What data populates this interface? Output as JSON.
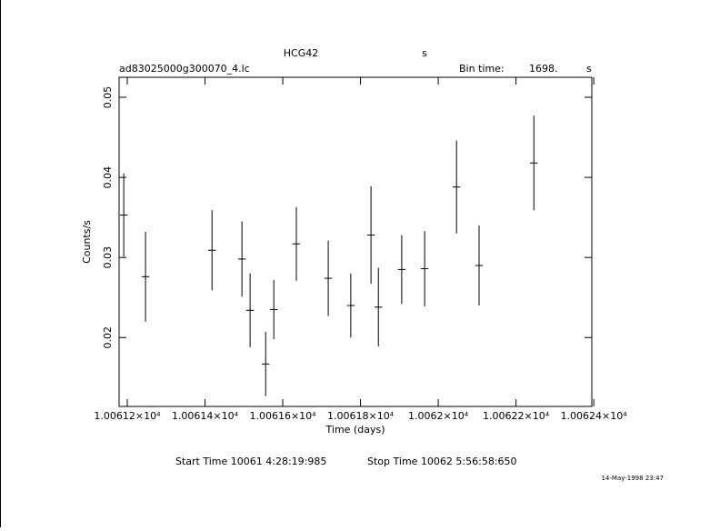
{
  "chart_data": {
    "type": "errorbar",
    "title": "HCG42",
    "title_unit": "s",
    "source_file": "ad83025000g300070_4.lc",
    "bin_time_label": "Bin time:",
    "bin_time": "1698.",
    "bin_time_unit": "s",
    "x_label": "Time (days)",
    "y_label": "Counts/s",
    "x": [
      10061.191,
      10061.247,
      10061.418,
      10061.495,
      10061.516,
      10061.556,
      10061.577,
      10061.635,
      10061.717,
      10061.775,
      10061.827,
      10061.846,
      10061.906,
      10061.965,
      10062.047,
      10062.105,
      10062.246
    ],
    "x_error": 0.0098,
    "series": [
      {
        "name": "Counts/s",
        "color": "#000000",
        "values": [
          0.0353,
          0.0276,
          0.0309,
          0.0298,
          0.0234,
          0.0167,
          0.0235,
          0.0317,
          0.0274,
          0.024,
          0.0328,
          0.0238,
          0.0285,
          0.0286,
          0.0388,
          0.029,
          0.0418
        ],
        "errors": [
          0.0052,
          0.0056,
          0.005,
          0.0047,
          0.0046,
          0.004,
          0.0037,
          0.0046,
          0.0047,
          0.004,
          0.0061,
          0.0049,
          0.0043,
          0.0047,
          0.0058,
          0.005,
          0.0059
        ]
      }
    ],
    "xlim": [
      10061.179,
      10062.395
    ],
    "ylim": [
      0.0114,
      0.0525
    ],
    "xticks": [
      {
        "value": 10061.2,
        "label": "1.00612×10⁴"
      },
      {
        "value": 10061.4,
        "label": "1.00614×10⁴"
      },
      {
        "value": 10061.6,
        "label": "1.00616×10⁴"
      },
      {
        "value": 10061.8,
        "label": "1.00618×10⁴"
      },
      {
        "value": 10062.0,
        "label": "1.0062×10⁴"
      },
      {
        "value": 10062.2,
        "label": "1.00622×10⁴"
      },
      {
        "value": 10062.4,
        "label": "1.00624×10⁴"
      }
    ],
    "yticks": [
      0.02,
      0.03,
      0.04,
      0.05
    ],
    "start_time": "Start Time 10061  4:28:19:985",
    "stop_time": "Stop Time 10062  5:56:58:650",
    "timestamp": "14-May-1998 23:47"
  }
}
